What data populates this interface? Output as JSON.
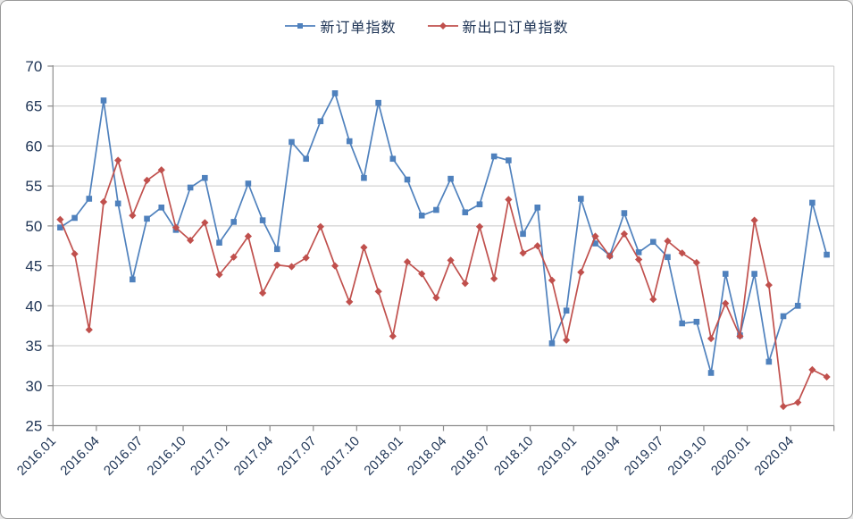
{
  "figure": {
    "kind": "excel-style line chart",
    "background": "#ffffff",
    "border_color": "#9a9a9a"
  },
  "colors": {
    "series_new_orders": "#4F81BD",
    "series_export_orders": "#C0504D",
    "gridline": "#c6c6c6",
    "axis": "#8c8c8c",
    "text": "#1f3556"
  },
  "legend": {
    "position": "top-center",
    "items": [
      {
        "label": "新订单指数",
        "marker": "square",
        "color": "#4F81BD"
      },
      {
        "label": "新出口订单指数",
        "marker": "diamond",
        "color": "#C0504D"
      }
    ]
  },
  "chart_data": {
    "type": "line",
    "title": "",
    "xlabel": "",
    "ylabel": "",
    "ylim": [
      25,
      70
    ],
    "ytick_step": 5,
    "ytick_labels": [
      "25",
      "30",
      "35",
      "40",
      "45",
      "50",
      "55",
      "60",
      "65",
      "70"
    ],
    "grid": true,
    "legend_position": "top",
    "x_tick_interval_months": 3,
    "x_tick_labels": [
      "2016.01",
      "2016.04",
      "2016.07",
      "2016.10",
      "2017.01",
      "2017.04",
      "2017.07",
      "2017.10",
      "2018.01",
      "2018.04",
      "2018.07",
      "2018.10",
      "2019.01",
      "2019.04",
      "2019.07",
      "2019.10",
      "2020.01",
      "2020.04"
    ],
    "categories": [
      "2016.01",
      "2016.02",
      "2016.03",
      "2016.04",
      "2016.05",
      "2016.06",
      "2016.07",
      "2016.08",
      "2016.09",
      "2016.10",
      "2016.11",
      "2016.12",
      "2017.01",
      "2017.02",
      "2017.03",
      "2017.04",
      "2017.05",
      "2017.06",
      "2017.07",
      "2017.08",
      "2017.09",
      "2017.10",
      "2017.11",
      "2017.12",
      "2018.01",
      "2018.02",
      "2018.03",
      "2018.04",
      "2018.05",
      "2018.06",
      "2018.07",
      "2018.08",
      "2018.09",
      "2018.10",
      "2018.11",
      "2018.12",
      "2019.01",
      "2019.02",
      "2019.03",
      "2019.04",
      "2019.05",
      "2019.06",
      "2019.07",
      "2019.08",
      "2019.09",
      "2019.10",
      "2019.11",
      "2019.12",
      "2020.01",
      "2020.02",
      "2020.03",
      "2020.04",
      "2020.05",
      "2020.06"
    ],
    "series": [
      {
        "name": "新订单指数",
        "color": "#4F81BD",
        "marker": "square",
        "values": [
          49.8,
          51.0,
          53.4,
          65.7,
          52.8,
          43.3,
          50.9,
          52.3,
          49.5,
          54.8,
          56.0,
          47.9,
          50.5,
          55.3,
          50.7,
          47.1,
          60.5,
          58.4,
          63.1,
          66.6,
          60.6,
          56.0,
          65.4,
          58.4,
          55.8,
          51.3,
          52.0,
          55.9,
          51.7,
          52.7,
          58.7,
          58.2,
          49.0,
          52.3,
          35.3,
          39.4,
          53.4,
          47.8,
          46.3,
          51.6,
          46.7,
          48.0,
          46.1,
          37.8,
          38.0,
          31.6,
          44.0,
          36.3,
          44.0,
          33.0,
          38.7,
          40.0,
          52.9,
          46.4
        ]
      },
      {
        "name": "新出口订单指数",
        "color": "#C0504D",
        "marker": "diamond",
        "values": [
          50.8,
          46.5,
          37.0,
          53.0,
          58.2,
          51.3,
          55.7,
          57.0,
          49.8,
          48.2,
          50.4,
          43.9,
          46.1,
          48.7,
          41.6,
          45.1,
          44.9,
          46.0,
          49.9,
          45.0,
          40.5,
          47.3,
          41.8,
          36.2,
          45.5,
          44.0,
          41.0,
          45.7,
          42.8,
          49.9,
          43.4,
          53.3,
          46.6,
          47.5,
          43.2,
          35.7,
          44.2,
          48.7,
          46.2,
          49.0,
          45.8,
          40.8,
          48.1,
          46.6,
          45.4,
          35.9,
          40.3,
          36.2,
          50.7,
          42.6,
          27.4,
          27.9,
          32.0,
          31.1
        ]
      }
    ]
  }
}
